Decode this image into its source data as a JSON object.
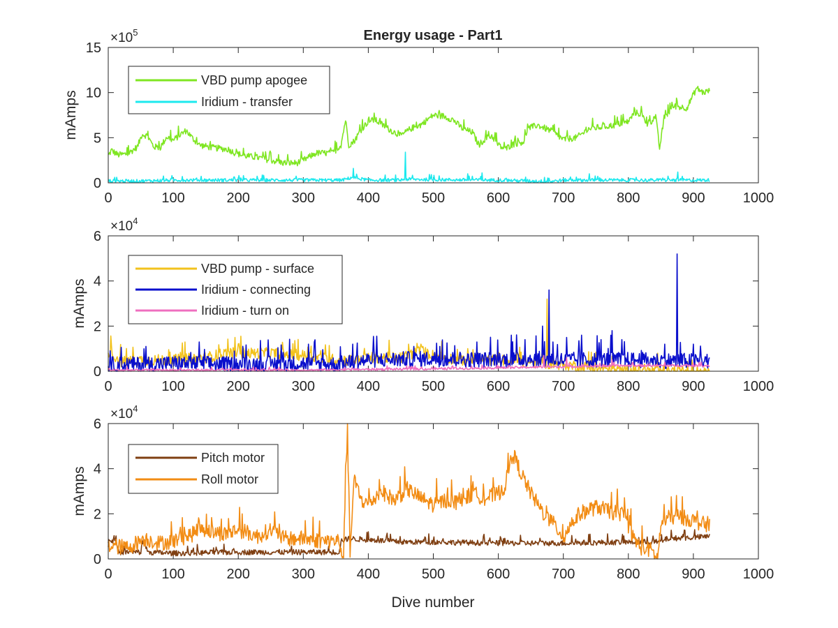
{
  "chart_data": [
    {
      "type": "line",
      "title": "Energy usage - Part1",
      "xlabel": "",
      "ylabel": "mAmps",
      "exponent_base": "×10",
      "exponent": "5",
      "xlim": [
        0,
        1000
      ],
      "ylim": [
        0,
        15
      ],
      "xticks": [
        0,
        100,
        200,
        300,
        400,
        500,
        600,
        700,
        800,
        900,
        1000
      ],
      "yticks": [
        0,
        5,
        10,
        15
      ],
      "legend_position": "top-left",
      "grid": false,
      "series": [
        {
          "name": "VBD pump apogee",
          "color": "#7fe622",
          "noise": 0.35,
          "points": [
            [
              0,
              3.0
            ],
            [
              5,
              3.6
            ],
            [
              15,
              3.1
            ],
            [
              30,
              3.2
            ],
            [
              45,
              4.0
            ],
            [
              52,
              5.4
            ],
            [
              60,
              5.2
            ],
            [
              70,
              4.0
            ],
            [
              80,
              3.9
            ],
            [
              90,
              5.1
            ],
            [
              100,
              4.7
            ],
            [
              110,
              5.3
            ],
            [
              120,
              5.8
            ],
            [
              130,
              4.9
            ],
            [
              140,
              4.2
            ],
            [
              160,
              3.9
            ],
            [
              185,
              3.7
            ],
            [
              195,
              3.3
            ],
            [
              210,
              3.0
            ],
            [
              230,
              2.8
            ],
            [
              250,
              2.5
            ],
            [
              270,
              2.2
            ],
            [
              290,
              2.2
            ],
            [
              300,
              2.5
            ],
            [
              320,
              3.3
            ],
            [
              345,
              3.3
            ],
            [
              358,
              4.2
            ],
            [
              365,
              7.0
            ],
            [
              370,
              4.2
            ],
            [
              378,
              4.6
            ],
            [
              390,
              6.0
            ],
            [
              400,
              6.8
            ],
            [
              410,
              7.0
            ],
            [
              420,
              6.5
            ],
            [
              435,
              5.8
            ],
            [
              450,
              5.2
            ],
            [
              465,
              6.0
            ],
            [
              480,
              6.4
            ],
            [
              500,
              7.5
            ],
            [
              515,
              7.4
            ],
            [
              530,
              7.0
            ],
            [
              545,
              6.0
            ],
            [
              560,
              5.6
            ],
            [
              570,
              4.2
            ],
            [
              580,
              4.9
            ],
            [
              590,
              5.2
            ],
            [
              600,
              4.2
            ],
            [
              610,
              3.7
            ],
            [
              620,
              4.2
            ],
            [
              640,
              4.6
            ],
            [
              645,
              6.0
            ],
            [
              660,
              6.4
            ],
            [
              680,
              5.8
            ],
            [
              700,
              4.8
            ],
            [
              720,
              5.0
            ],
            [
              740,
              6.0
            ],
            [
              760,
              6.2
            ],
            [
              780,
              6.4
            ],
            [
              800,
              6.8
            ],
            [
              810,
              7.8
            ],
            [
              820,
              7.6
            ],
            [
              830,
              6.4
            ],
            [
              842,
              7.4
            ],
            [
              848,
              3.8
            ],
            [
              855,
              7.2
            ],
            [
              870,
              8.5
            ],
            [
              890,
              8.3
            ],
            [
              905,
              10.5
            ],
            [
              915,
              10.0
            ],
            [
              925,
              10.2
            ]
          ]
        },
        {
          "name": "Iridium - transfer",
          "color": "#1de9ee",
          "noise": 0.18,
          "points": [
            [
              0,
              0.2
            ],
            [
              50,
              0.2
            ],
            [
              100,
              0.3
            ],
            [
              200,
              0.3
            ],
            [
              300,
              0.3
            ],
            [
              360,
              0.3
            ],
            [
              375,
              0.6
            ],
            [
              400,
              0.3
            ],
            [
              450,
              0.3
            ],
            [
              455,
              0.4
            ],
            [
              500,
              0.35
            ],
            [
              600,
              0.3
            ],
            [
              680,
              0.15
            ],
            [
              700,
              0.3
            ],
            [
              800,
              0.3
            ],
            [
              900,
              0.3
            ],
            [
              925,
              0.3
            ]
          ],
          "spikes": [
            [
              377,
              1.6
            ],
            [
              457,
              3.4
            ],
            [
              553,
              1.0
            ],
            [
              575,
              1.1
            ],
            [
              740,
              1.0
            ],
            [
              876,
              1.2
            ]
          ]
        }
      ]
    },
    {
      "type": "line",
      "title": "",
      "xlabel": "",
      "ylabel": "mAmps",
      "exponent_base": "×10",
      "exponent": "4",
      "xlim": [
        0,
        1000
      ],
      "ylim": [
        0,
        6
      ],
      "xticks": [
        0,
        100,
        200,
        300,
        400,
        500,
        600,
        700,
        800,
        900,
        1000
      ],
      "yticks": [
        0,
        2,
        4,
        6
      ],
      "legend_position": "top-left",
      "grid": false,
      "series": [
        {
          "name": "VBD pump - surface",
          "color": "#f2c21c",
          "noise": 0.25,
          "points": [
            [
              0,
              0.9
            ],
            [
              20,
              0.4
            ],
            [
              50,
              0.5
            ],
            [
              100,
              0.5
            ],
            [
              150,
              0.6
            ],
            [
              180,
              0.8
            ],
            [
              250,
              0.8
            ],
            [
              300,
              0.7
            ],
            [
              350,
              0.5
            ],
            [
              380,
              0.5
            ],
            [
              400,
              0.6
            ],
            [
              450,
              0.6
            ],
            [
              480,
              0.9
            ],
            [
              500,
              0.7
            ],
            [
              540,
              0.5
            ],
            [
              600,
              0.5
            ],
            [
              650,
              0.4
            ],
            [
              700,
              0.3
            ],
            [
              760,
              0.1
            ],
            [
              800,
              0.0
            ],
            [
              850,
              0.0
            ],
            [
              925,
              0.0
            ]
          ],
          "spikes": [
            [
              5,
              1.1
            ],
            [
              484,
              1.1
            ],
            [
              505,
              1.0
            ],
            [
              675,
              3.2
            ]
          ]
        },
        {
          "name": "Iridium - connecting",
          "color": "#0a0fcc",
          "noise": 0.35,
          "points": [
            [
              0,
              0.3
            ],
            [
              50,
              0.3
            ],
            [
              100,
              0.35
            ],
            [
              200,
              0.3
            ],
            [
              300,
              0.35
            ],
            [
              350,
              0.3
            ],
            [
              400,
              0.5
            ],
            [
              500,
              0.55
            ],
            [
              600,
              0.5
            ],
            [
              650,
              0.55
            ],
            [
              700,
              0.5
            ],
            [
              800,
              0.5
            ],
            [
              900,
              0.45
            ],
            [
              925,
              0.45
            ]
          ],
          "spikes": [
            [
              58,
              1.1
            ],
            [
              140,
              1.3
            ],
            [
              308,
              1.2
            ],
            [
              376,
              1.2
            ],
            [
              470,
              1.1
            ],
            [
              510,
              1.1
            ],
            [
              620,
              1.6
            ],
            [
              641,
              1.4
            ],
            [
              668,
              2.0
            ],
            [
              678,
              3.6
            ],
            [
              684,
              1.3
            ],
            [
              705,
              1.5
            ],
            [
              728,
              1.6
            ],
            [
              758,
              1.4
            ],
            [
              775,
              1.8
            ],
            [
              790,
              1.4
            ],
            [
              856,
              1.2
            ],
            [
              875,
              5.2
            ],
            [
              900,
              1.2
            ]
          ]
        },
        {
          "name": "Iridium - turn on",
          "color": "#ef6fbf",
          "noise": 0.05,
          "points": [
            [
              0,
              0.05
            ],
            [
              100,
              0.05
            ],
            [
              200,
              0.05
            ],
            [
              300,
              0.05
            ],
            [
              400,
              0.08
            ],
            [
              500,
              0.1
            ],
            [
              600,
              0.15
            ],
            [
              700,
              0.2
            ],
            [
              800,
              0.25
            ],
            [
              900,
              0.25
            ],
            [
              925,
              0.25
            ]
          ],
          "spikes": [
            [
              670,
              0.7
            ],
            [
              705,
              0.6
            ],
            [
              775,
              0.5
            ]
          ]
        }
      ]
    },
    {
      "type": "line",
      "title": "",
      "xlabel": "Dive number",
      "ylabel": "mAmps",
      "exponent_base": "×10",
      "exponent": "4",
      "xlim": [
        0,
        1000
      ],
      "ylim": [
        0,
        6
      ],
      "xticks": [
        0,
        100,
        200,
        300,
        400,
        500,
        600,
        700,
        800,
        900,
        1000
      ],
      "yticks": [
        0,
        2,
        4,
        6
      ],
      "legend_position": "top-left",
      "grid": false,
      "series": [
        {
          "name": "Pitch motor",
          "color": "#7f3f12",
          "noise": 0.12,
          "points": [
            [
              0,
              0.8
            ],
            [
              12,
              0.8
            ],
            [
              15,
              0.3
            ],
            [
              50,
              0.3
            ],
            [
              55,
              0.9
            ],
            [
              60,
              0.3
            ],
            [
              100,
              0.25
            ],
            [
              200,
              0.3
            ],
            [
              300,
              0.3
            ],
            [
              355,
              0.3
            ],
            [
              358,
              0.8
            ],
            [
              370,
              0.9
            ],
            [
              400,
              0.85
            ],
            [
              450,
              0.75
            ],
            [
              500,
              0.75
            ],
            [
              600,
              0.7
            ],
            [
              700,
              0.7
            ],
            [
              800,
              0.75
            ],
            [
              850,
              0.75
            ],
            [
              860,
              0.9
            ],
            [
              900,
              0.95
            ],
            [
              925,
              1.0
            ]
          ]
        },
        {
          "name": "Roll motor",
          "color": "#f28c14",
          "noise": 0.35,
          "points": [
            [
              0,
              0.6
            ],
            [
              30,
              0.5
            ],
            [
              55,
              0.9
            ],
            [
              80,
              0.7
            ],
            [
              100,
              0.8
            ],
            [
              130,
              1.1
            ],
            [
              140,
              1.4
            ],
            [
              160,
              1.2
            ],
            [
              180,
              1.1
            ],
            [
              200,
              1.3
            ],
            [
              230,
              1.0
            ],
            [
              250,
              1.3
            ],
            [
              270,
              0.9
            ],
            [
              300,
              0.9
            ],
            [
              330,
              0.8
            ],
            [
              355,
              0.8
            ],
            [
              362,
              0.0
            ],
            [
              365,
              3.8
            ],
            [
              368,
              5.5
            ],
            [
              372,
              0.3
            ],
            [
              378,
              3.5
            ],
            [
              390,
              2.6
            ],
            [
              400,
              2.4
            ],
            [
              420,
              3.0
            ],
            [
              440,
              2.6
            ],
            [
              460,
              3.1
            ],
            [
              480,
              2.7
            ],
            [
              500,
              2.4
            ],
            [
              520,
              2.6
            ],
            [
              540,
              2.5
            ],
            [
              560,
              2.9
            ],
            [
              580,
              2.7
            ],
            [
              600,
              2.9
            ],
            [
              610,
              3.2
            ],
            [
              622,
              4.7
            ],
            [
              635,
              3.8
            ],
            [
              650,
              2.9
            ],
            [
              670,
              2.0
            ],
            [
              690,
              1.4
            ],
            [
              700,
              0.9
            ],
            [
              710,
              1.5
            ],
            [
              725,
              2.0
            ],
            [
              740,
              2.2
            ],
            [
              755,
              2.3
            ],
            [
              770,
              2.1
            ],
            [
              790,
              2.0
            ],
            [
              800,
              1.5
            ],
            [
              808,
              0.9
            ],
            [
              820,
              0.5
            ],
            [
              835,
              0.4
            ],
            [
              845,
              0.0
            ],
            [
              850,
              1.5
            ],
            [
              860,
              1.8
            ],
            [
              875,
              1.9
            ],
            [
              890,
              1.8
            ],
            [
              910,
              1.6
            ],
            [
              920,
              1.5
            ],
            [
              925,
              1.6
            ]
          ]
        }
      ]
    }
  ]
}
